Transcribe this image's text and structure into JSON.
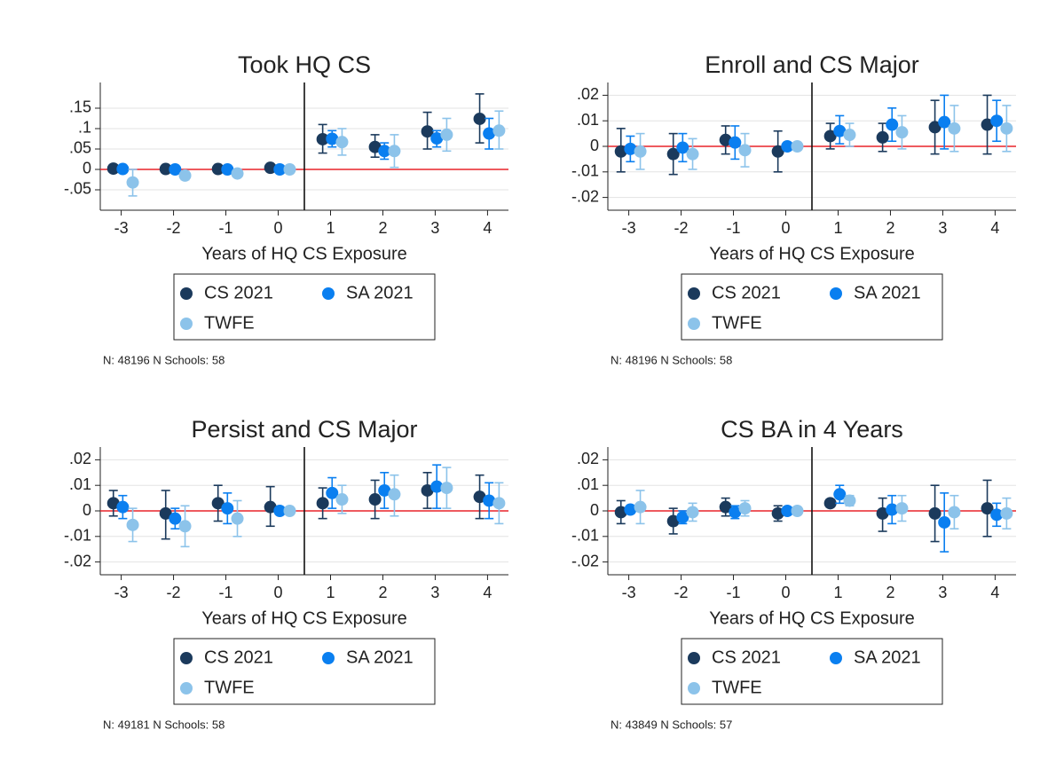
{
  "chart_data": [
    {
      "type": "errorbar",
      "title": "Took HQ CS",
      "xlabel": "Years of HQ CS Exposure",
      "note": "N: 48196 N Schools: 58",
      "x": [
        -3,
        -2,
        -1,
        0,
        1,
        2,
        3,
        4
      ],
      "xlim": [
        -3.4,
        4.4
      ],
      "xticks": [
        -3,
        -2,
        -1,
        0,
        1,
        2,
        3,
        4
      ],
      "ylim": [
        -0.1,
        0.213
      ],
      "yticks": [
        {
          "value": -0.05,
          "label": "-.05"
        },
        0,
        {
          "value": 0.05,
          "label": ".05"
        },
        {
          "value": 0.1,
          "label": ".1"
        },
        {
          "value": 0.15,
          "label": ".15"
        }
      ],
      "grid": true,
      "vline": 0.5,
      "hline": 0,
      "series": [
        {
          "name": "CS 2021",
          "color": "#1b3a5c",
          "values": [
            0.002,
            0.001,
            0.001,
            0.004,
            0.074,
            0.055,
            0.093,
            0.124
          ],
          "lower": [
            -0.001,
            -0.002,
            -0.002,
            0.001,
            0.04,
            0.03,
            0.05,
            0.065
          ],
          "upper": [
            0.005,
            0.004,
            0.004,
            0.007,
            0.11,
            0.085,
            0.14,
            0.185
          ]
        },
        {
          "name": "SA 2021",
          "color": "#0a7ff0",
          "values": [
            0.001,
            0.0,
            0.0,
            0.0,
            0.075,
            0.045,
            0.076,
            0.088
          ],
          "lower": [
            -0.002,
            -0.003,
            -0.003,
            null,
            0.055,
            0.025,
            0.055,
            0.05
          ],
          "upper": [
            0.004,
            0.003,
            0.003,
            null,
            0.095,
            0.065,
            0.095,
            0.125
          ]
        },
        {
          "name": "TWFE",
          "color": "#8cc3ea",
          "values": [
            -0.032,
            -0.015,
            -0.01,
            0.0,
            0.067,
            0.045,
            0.085,
            0.095
          ],
          "lower": [
            -0.065,
            -0.025,
            -0.015,
            null,
            0.035,
            0.005,
            0.045,
            0.05
          ],
          "upper": [
            0.0,
            -0.005,
            -0.005,
            null,
            0.1,
            0.085,
            0.125,
            0.143
          ]
        }
      ]
    },
    {
      "type": "errorbar",
      "title": "Enroll and CS Major",
      "xlabel": "Years of HQ CS Exposure",
      "note": "N: 48196 N Schools: 58",
      "x": [
        -3,
        -2,
        -1,
        0,
        1,
        2,
        3,
        4
      ],
      "xlim": [
        -3.4,
        4.4
      ],
      "xticks": [
        -3,
        -2,
        -1,
        0,
        1,
        2,
        3,
        4
      ],
      "ylim": [
        -0.025,
        0.025
      ],
      "yticks": [
        {
          "value": -0.02,
          "label": "-.02"
        },
        {
          "value": -0.01,
          "label": "-.01"
        },
        0,
        {
          "value": 0.01,
          "label": ".01"
        },
        {
          "value": 0.02,
          "label": ".02"
        }
      ],
      "grid": true,
      "vline": 0.5,
      "hline": 0,
      "series": [
        {
          "name": "CS 2021",
          "color": "#1b3a5c",
          "values": [
            -0.002,
            -0.003,
            0.0025,
            -0.002,
            0.004,
            0.0035,
            0.0075,
            0.0085
          ],
          "lower": [
            -0.01,
            -0.011,
            -0.003,
            -0.01,
            -0.001,
            -0.002,
            -0.003,
            -0.003
          ],
          "upper": [
            0.007,
            0.005,
            0.008,
            0.006,
            0.009,
            0.009,
            0.018,
            0.02
          ]
        },
        {
          "name": "SA 2021",
          "color": "#0a7ff0",
          "values": [
            -0.001,
            -0.0005,
            0.0015,
            0.0,
            0.006,
            0.0085,
            0.0095,
            0.01
          ],
          "lower": [
            -0.006,
            -0.006,
            -0.005,
            null,
            0.001,
            0.002,
            -0.001,
            0.002
          ],
          "upper": [
            0.004,
            0.005,
            0.008,
            null,
            0.012,
            0.015,
            0.02,
            0.018
          ]
        },
        {
          "name": "TWFE",
          "color": "#8cc3ea",
          "values": [
            -0.002,
            -0.003,
            -0.0015,
            0.0,
            0.0045,
            0.0055,
            0.007,
            0.007
          ],
          "lower": [
            -0.009,
            -0.009,
            -0.008,
            null,
            0.0,
            -0.001,
            -0.002,
            -0.002
          ],
          "upper": [
            0.005,
            0.003,
            0.005,
            null,
            0.009,
            0.012,
            0.016,
            0.016
          ]
        }
      ]
    },
    {
      "type": "errorbar",
      "title": "Persist and CS Major",
      "xlabel": "Years of HQ CS Exposure",
      "note": "N: 49181 N Schools: 58",
      "x": [
        -3,
        -2,
        -1,
        0,
        1,
        2,
        3,
        4
      ],
      "xlim": [
        -3.4,
        4.4
      ],
      "xticks": [
        -3,
        -2,
        -1,
        0,
        1,
        2,
        3,
        4
      ],
      "ylim": [
        -0.025,
        0.025
      ],
      "yticks": [
        {
          "value": -0.02,
          "label": "-.02"
        },
        {
          "value": -0.01,
          "label": "-.01"
        },
        0,
        {
          "value": 0.01,
          "label": ".01"
        },
        {
          "value": 0.02,
          "label": ".02"
        }
      ],
      "grid": true,
      "vline": 0.5,
      "hline": 0,
      "series": [
        {
          "name": "CS 2021",
          "color": "#1b3a5c",
          "values": [
            0.003,
            -0.001,
            0.003,
            0.0015,
            0.003,
            0.0045,
            0.008,
            0.0055
          ],
          "lower": [
            -0.002,
            -0.011,
            -0.004,
            -0.006,
            -0.003,
            -0.003,
            0.001,
            -0.003
          ],
          "upper": [
            0.008,
            0.008,
            0.01,
            0.0095,
            0.009,
            0.012,
            0.015,
            0.014
          ]
        },
        {
          "name": "SA 2021",
          "color": "#0a7ff0",
          "values": [
            0.0015,
            -0.003,
            0.001,
            0.0,
            0.007,
            0.008,
            0.0095,
            0.004
          ],
          "lower": [
            -0.003,
            -0.007,
            -0.005,
            null,
            0.001,
            0.001,
            0.001,
            -0.003
          ],
          "upper": [
            0.006,
            0.001,
            0.007,
            null,
            0.013,
            0.015,
            0.018,
            0.011
          ]
        },
        {
          "name": "TWFE",
          "color": "#8cc3ea",
          "values": [
            -0.0055,
            -0.006,
            -0.003,
            0.0,
            0.0045,
            0.0065,
            0.009,
            0.003
          ],
          "lower": [
            -0.012,
            -0.014,
            -0.01,
            null,
            -0.001,
            -0.002,
            0.001,
            -0.005
          ],
          "upper": [
            0.001,
            0.002,
            0.004,
            null,
            0.01,
            0.014,
            0.017,
            0.011
          ]
        }
      ]
    },
    {
      "type": "errorbar",
      "title": "CS BA in 4 Years",
      "xlabel": "Years of HQ CS Exposure",
      "note": "N: 43849 N Schools: 57",
      "x": [
        -3,
        -2,
        -1,
        0,
        1,
        2,
        3,
        4
      ],
      "xlim": [
        -3.4,
        4.4
      ],
      "xticks": [
        -3,
        -2,
        -1,
        0,
        1,
        2,
        3,
        4
      ],
      "ylim": [
        -0.025,
        0.025
      ],
      "yticks": [
        {
          "value": -0.02,
          "label": "-.02"
        },
        {
          "value": -0.01,
          "label": "-.01"
        },
        0,
        {
          "value": 0.01,
          "label": ".01"
        },
        {
          "value": 0.02,
          "label": ".02"
        }
      ],
      "grid": true,
      "vline": 0.5,
      "hline": 0,
      "series": [
        {
          "name": "CS 2021",
          "color": "#1b3a5c",
          "values": [
            -0.0005,
            -0.004,
            0.0015,
            -0.001,
            0.003,
            -0.001,
            -0.001,
            0.001
          ],
          "lower": [
            -0.005,
            -0.009,
            -0.002,
            -0.004,
            0.0015,
            -0.008,
            -0.012,
            -0.01
          ],
          "upper": [
            0.004,
            0.001,
            0.005,
            0.002,
            0.0045,
            0.005,
            0.01,
            0.012
          ]
        },
        {
          "name": "SA 2021",
          "color": "#0a7ff0",
          "values": [
            0.0005,
            -0.0025,
            -0.0005,
            0.0,
            0.0065,
            0.0005,
            -0.0045,
            -0.0015
          ],
          "lower": [
            -0.001,
            -0.005,
            -0.003,
            null,
            0.003,
            -0.005,
            -0.016,
            -0.006
          ],
          "upper": [
            0.002,
            0.0,
            0.002,
            null,
            0.01,
            0.006,
            0.007,
            0.003
          ]
        },
        {
          "name": "TWFE",
          "color": "#8cc3ea",
          "values": [
            0.0015,
            -0.0005,
            0.001,
            0.0,
            0.004,
            0.001,
            -0.0005,
            -0.001
          ],
          "lower": [
            -0.005,
            -0.004,
            -0.002,
            null,
            0.002,
            -0.004,
            -0.007,
            -0.007
          ],
          "upper": [
            0.008,
            0.003,
            0.004,
            null,
            0.006,
            0.006,
            0.006,
            0.005
          ]
        }
      ]
    }
  ]
}
